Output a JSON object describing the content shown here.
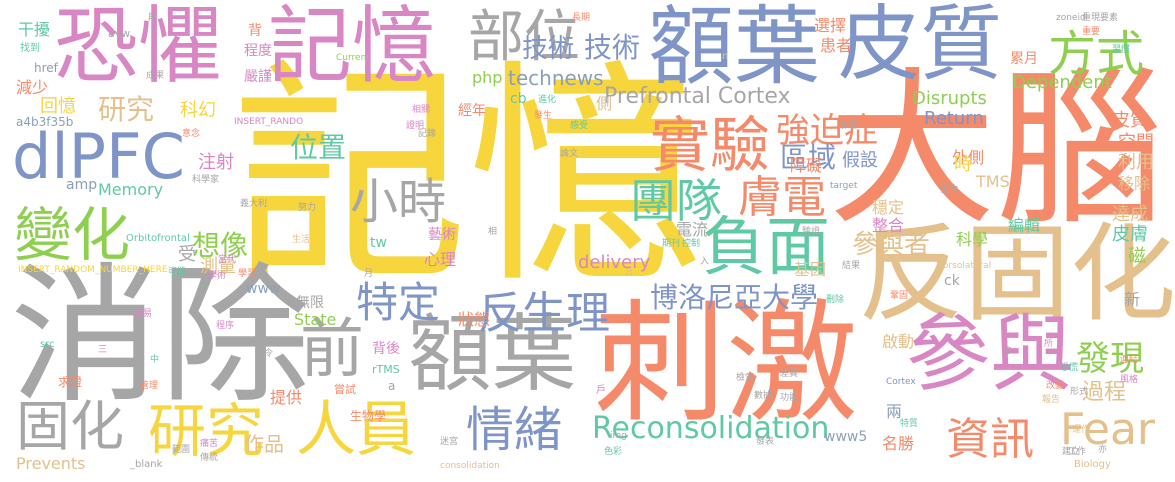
{
  "palette": {
    "yellow": "#f7d53c",
    "orange": "#f58a6a",
    "gray": "#a6a6a6",
    "blue": "#7f95c8",
    "pink": "#d986c4",
    "tan": "#e4c08c",
    "green": "#8ecf4f",
    "teal": "#5fc9a3",
    "blue_gray": "#8aa0b8"
  },
  "words": [
    {
      "text": "記憶",
      "color": "yellow"
    },
    {
      "text": "大腦",
      "color": "orange"
    },
    {
      "text": "消除",
      "color": "gray"
    },
    {
      "text": "刺激",
      "color": "orange"
    },
    {
      "text": "反固化",
      "color": "tan"
    },
    {
      "text": "恐懼",
      "color": "pink"
    },
    {
      "text": "記憶",
      "color": "pink"
    },
    {
      "text": "額葉",
      "color": "blue"
    },
    {
      "text": "皮質",
      "color": "blue"
    },
    {
      "text": "參與",
      "color": "pink"
    },
    {
      "text": "前",
      "color": "gray"
    },
    {
      "text": "額葉",
      "color": "gray"
    },
    {
      "text": "dlPFC",
      "color": "blue"
    },
    {
      "text": "部位",
      "color": "gray"
    },
    {
      "text": "方式",
      "color": "green"
    },
    {
      "text": "負面",
      "color": "teal"
    },
    {
      "text": "實驗",
      "color": "orange"
    },
    {
      "text": "變化",
      "color": "green"
    },
    {
      "text": "研究",
      "color": "yellow"
    },
    {
      "text": "人員",
      "color": "yellow"
    },
    {
      "text": "固化",
      "color": "gray"
    },
    {
      "text": "情緒",
      "color": "blue"
    },
    {
      "text": "反生理",
      "color": "blue"
    },
    {
      "text": "小時",
      "color": "gray"
    },
    {
      "text": "團隊",
      "color": "teal"
    },
    {
      "text": "膚電",
      "color": "orange"
    },
    {
      "text": "技術",
      "color": "blue"
    },
    {
      "text": "特定",
      "color": "blue"
    },
    {
      "text": "強迫症",
      "color": "orange"
    },
    {
      "text": "資訊",
      "color": "orange"
    },
    {
      "text": "Fear",
      "color": "tan"
    },
    {
      "text": "發現",
      "color": "green"
    },
    {
      "text": "想像",
      "color": "green"
    },
    {
      "text": "區域",
      "color": "blue"
    },
    {
      "text": "博洛尼亞大學",
      "color": "blue"
    },
    {
      "text": "Reconsolidation",
      "color": "teal"
    },
    {
      "text": "參與者",
      "color": "tan"
    },
    {
      "text": "Prefrontal Cortex",
      "color": "gray"
    },
    {
      "text": "研究",
      "color": "tan"
    },
    {
      "text": "位置",
      "color": "teal"
    },
    {
      "text": "技術",
      "color": "blue"
    },
    {
      "text": "technews",
      "color": "blue_gray"
    },
    {
      "text": "過程",
      "color": "tan"
    },
    {
      "text": "作品",
      "color": "tan"
    },
    {
      "text": "干擾",
      "color": "teal"
    },
    {
      "text": "減少",
      "color": "orange"
    },
    {
      "text": "回憶",
      "color": "yellow"
    },
    {
      "text": "Memory",
      "color": "teal"
    },
    {
      "text": "科幻",
      "color": "yellow"
    },
    {
      "text": "注射",
      "color": "pink"
    },
    {
      "text": "測量",
      "color": "tan"
    },
    {
      "text": "State",
      "color": "green"
    },
    {
      "text": "delivery",
      "color": "pink"
    },
    {
      "text": "Prevents",
      "color": "tan"
    },
    {
      "text": "Disrupts",
      "color": "green"
    },
    {
      "text": "Dependent",
      "color": "green"
    },
    {
      "text": "Return",
      "color": "blue"
    },
    {
      "text": "皮質",
      "color": "orange"
    },
    {
      "text": "空間",
      "color": "orange"
    },
    {
      "text": "利用",
      "color": "tan"
    },
    {
      "text": "移除",
      "color": "tan"
    },
    {
      "text": "達成",
      "color": "tan"
    },
    {
      "text": "皮膚",
      "color": "teal"
    },
    {
      "text": "磁",
      "color": "green"
    },
    {
      "text": "科學",
      "color": "green"
    },
    {
      "text": "編輯",
      "color": "teal"
    },
    {
      "text": "穩定",
      "color": "tan"
    },
    {
      "text": "整合",
      "color": "pink"
    },
    {
      "text": "假設",
      "color": "blue"
    },
    {
      "text": "外側",
      "color": "orange"
    },
    {
      "text": "時",
      "color": "yellow"
    },
    {
      "text": "障礙",
      "color": "orange"
    },
    {
      "text": "TMS",
      "color": "tan"
    },
    {
      "text": "電流",
      "color": "gray"
    },
    {
      "text": "基因",
      "color": "tan"
    },
    {
      "text": "心理",
      "color": "pink"
    },
    {
      "text": "狀態",
      "color": "orange"
    },
    {
      "text": "提供",
      "color": "orange"
    },
    {
      "text": "兩",
      "color": "blue_gray"
    },
    {
      "text": "名勝",
      "color": "orange"
    },
    {
      "text": "啟動",
      "color": "tan"
    },
    {
      "text": "新",
      "color": "gray"
    },
    {
      "text": "選擇",
      "color": "orange"
    },
    {
      "text": "患者",
      "color": "orange"
    },
    {
      "text": "累月",
      "color": "orange"
    },
    {
      "text": "嚴謹",
      "color": "pink"
    },
    {
      "text": "程度",
      "color": "pink"
    },
    {
      "text": "經年",
      "color": "orange"
    },
    {
      "text": "側",
      "color": "tan"
    },
    {
      "text": "php",
      "color": "green"
    },
    {
      "text": "cb",
      "color": "teal"
    },
    {
      "text": "www",
      "color": "blue_gray"
    },
    {
      "text": "www5",
      "color": "blue_gray"
    },
    {
      "text": "tw",
      "color": "teal"
    },
    {
      "text": "受",
      "color": "gray"
    },
    {
      "text": "無限",
      "color": "gray"
    },
    {
      "text": "藝術",
      "color": "pink"
    },
    {
      "text": "背後",
      "color": "pink"
    },
    {
      "text": "生物學",
      "color": "orange"
    },
    {
      "text": "amp",
      "color": "blue_gray"
    },
    {
      "text": "href",
      "color": "blue_gray"
    },
    {
      "text": "a4b3f35b",
      "color": "blue_gray"
    },
    {
      "text": "avw",
      "color": "gray"
    },
    {
      "text": "背",
      "color": "orange"
    },
    {
      "text": "ck",
      "color": "gray"
    },
    {
      "text": "Current",
      "color": "green"
    },
    {
      "text": "Orbitofrontal",
      "color": "teal"
    },
    {
      "text": "INSERT_RANDOM_NUMBER_HERE",
      "color": "yellow"
    },
    {
      "text": "INSERT_RANDO",
      "color": "pink"
    },
    {
      "text": "Dorsolateral",
      "color": "tan"
    },
    {
      "text": "rTMS",
      "color": "teal"
    },
    {
      "text": "src",
      "color": "teal"
    },
    {
      "text": "_blank",
      "color": "gray"
    },
    {
      "text": "consolidation",
      "color": "tan"
    },
    {
      "text": "Biology",
      "color": "tan"
    },
    {
      "text": "Cortex",
      "color": "blue"
    },
    {
      "text": "target",
      "color": "blue_gray"
    },
    {
      "text": "zoneid",
      "color": "gray"
    },
    {
      "text": "img",
      "color": "gray"
    },
    {
      "text": "找到",
      "color": "teal"
    },
    {
      "text": "成果",
      "color": "gray"
    },
    {
      "text": "嘗試",
      "color": "orange"
    },
    {
      "text": "求證",
      "color": "orange"
    },
    {
      "text": "意念",
      "color": "orange"
    },
    {
      "text": "義大利",
      "color": "gray"
    },
    {
      "text": "生物",
      "color": "gray"
    },
    {
      "text": "論文",
      "color": "gray"
    },
    {
      "text": "科學家",
      "color": "gray"
    },
    {
      "text": "重要",
      "color": "orange"
    },
    {
      "text": "重現",
      "color": "gray"
    },
    {
      "text": "生活",
      "color": "tan"
    },
    {
      "text": "學術",
      "color": "pink"
    },
    {
      "text": "當代",
      "color": "pink"
    },
    {
      "text": "努力",
      "color": "gray"
    },
    {
      "text": "色彩",
      "color": "teal"
    },
    {
      "text": "迷宮",
      "color": "gray"
    },
    {
      "text": "發表",
      "color": "gray"
    },
    {
      "text": "建立",
      "color": "gray"
    },
    {
      "text": "管理",
      "color": "orange"
    },
    {
      "text": "長期",
      "color": "orange"
    },
    {
      "text": "發生",
      "color": "orange"
    },
    {
      "text": "變易",
      "color": "pink"
    },
    {
      "text": "恐慌",
      "color": "teal"
    },
    {
      "text": "改變",
      "color": "orange"
    },
    {
      "text": "報告",
      "color": "tan"
    },
    {
      "text": "要素",
      "color": "gray"
    },
    {
      "text": "形式",
      "color": "gray"
    },
    {
      "text": "工作",
      "color": "gray"
    },
    {
      "text": "影響",
      "color": "gray"
    },
    {
      "text": "相關",
      "color": "pink"
    },
    {
      "text": "進化",
      "color": "teal"
    },
    {
      "text": "證明",
      "color": "pink"
    },
    {
      "text": "刪除",
      "color": "teal"
    },
    {
      "text": "結果",
      "color": "gray"
    },
    {
      "text": "範圍",
      "color": "gray"
    },
    {
      "text": "風格",
      "color": "pink"
    },
    {
      "text": "鞏固",
      "color": "orange"
    },
    {
      "text": "檢索",
      "color": "gray"
    },
    {
      "text": "差異",
      "color": "gray"
    },
    {
      "text": "驗證",
      "color": "gray"
    },
    {
      "text": "連結",
      "color": "orange"
    },
    {
      "text": "程序",
      "color": "pink"
    },
    {
      "text": "運作",
      "color": "tan"
    },
    {
      "text": "數據",
      "color": "gray"
    },
    {
      "text": "痛苦",
      "color": "pink"
    },
    {
      "text": "習慣",
      "color": "teal"
    },
    {
      "text": "學習",
      "color": "orange"
    },
    {
      "text": "記錄",
      "color": "gray"
    },
    {
      "text": "期刊",
      "color": "teal"
    },
    {
      "text": "控制",
      "color": "teal"
    },
    {
      "text": "感受",
      "color": "teal"
    },
    {
      "text": "可能",
      "color": "teal"
    },
    {
      "text": "功能",
      "color": "gray"
    },
    {
      "text": "傳統",
      "color": "gray"
    },
    {
      "text": "特質",
      "color": "teal"
    },
    {
      "text": "中",
      "color": "teal"
    },
    {
      "text": "三",
      "color": "pink"
    },
    {
      "text": "a",
      "color": "gray"
    },
    {
      "text": "B",
      "color": "tan"
    },
    {
      "text": "n",
      "color": "tan"
    },
    {
      "text": "段",
      "color": "gray"
    },
    {
      "text": "戶",
      "color": "pink"
    },
    {
      "text": "多",
      "color": "gray"
    },
    {
      "text": "月",
      "color": "gray"
    },
    {
      "text": "令",
      "color": "gray"
    },
    {
      "text": "所",
      "color": "pink"
    },
    {
      "text": "入",
      "color": "gray"
    },
    {
      "text": "亦",
      "color": "gray"
    },
    {
      "text": "相",
      "color": "gray"
    }
  ]
}
